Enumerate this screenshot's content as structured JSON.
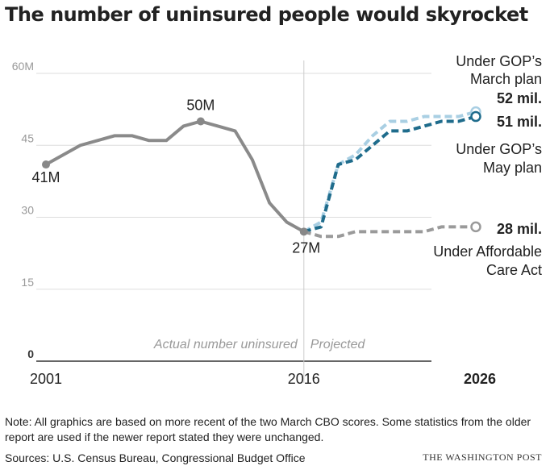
{
  "title": "The number of uninsured people would skyrocket",
  "chart_data": {
    "type": "line",
    "ylim": [
      0,
      60
    ],
    "yticks": [
      {
        "v": 0,
        "label": "0"
      },
      {
        "v": 15,
        "label": "15"
      },
      {
        "v": 30,
        "label": "30"
      },
      {
        "v": 45,
        "label": "45"
      },
      {
        "v": 60,
        "label": "60M"
      }
    ],
    "xticks": [
      {
        "v": 2001,
        "label": "2001"
      },
      {
        "v": 2016,
        "label": "2016"
      },
      {
        "v": 2026,
        "label": "2026"
      }
    ],
    "xlim": [
      2001,
      2026
    ],
    "divider": 2016,
    "region_labels": {
      "actual": "Actual number uninsured",
      "projected": "Projected"
    },
    "series": [
      {
        "key": "actual",
        "style": "solid",
        "color": "#8a8a8a",
        "x": [
          2001,
          2002,
          2003,
          2004,
          2005,
          2006,
          2007,
          2008,
          2009,
          2010,
          2011,
          2012,
          2013,
          2014,
          2015,
          2016
        ],
        "values": [
          41,
          43,
          45,
          46,
          47,
          47,
          46,
          46,
          49,
          50,
          49,
          48,
          42,
          33,
          29,
          27
        ]
      },
      {
        "key": "march",
        "style": "dashed",
        "color": "#a9cfe3",
        "x": [
          2016,
          2017,
          2018,
          2019,
          2020,
          2021,
          2022,
          2023,
          2024,
          2025,
          2026
        ],
        "values": [
          27,
          29,
          41,
          43,
          47,
          50,
          50,
          51,
          51,
          51,
          52
        ]
      },
      {
        "key": "may",
        "style": "dashed",
        "color": "#1f6c8c",
        "x": [
          2016,
          2017,
          2018,
          2019,
          2020,
          2021,
          2022,
          2023,
          2024,
          2025,
          2026
        ],
        "values": [
          27,
          28,
          41,
          42,
          45,
          48,
          48,
          49,
          50,
          50,
          51
        ]
      },
      {
        "key": "aca",
        "style": "dashed",
        "color": "#9a9a9a",
        "x": [
          2016,
          2017,
          2018,
          2019,
          2020,
          2021,
          2022,
          2023,
          2024,
          2025,
          2026
        ],
        "values": [
          27,
          26,
          26,
          27,
          27,
          27,
          27,
          27,
          28,
          28,
          28
        ]
      }
    ],
    "point_labels": [
      {
        "x": 2001,
        "y": 41,
        "label": "41M"
      },
      {
        "x": 2010,
        "y": 50,
        "label": "50M"
      },
      {
        "x": 2016,
        "y": 27,
        "label": "27M"
      }
    ],
    "end_labels": {
      "march": {
        "value": "52 mil.",
        "name": [
          "Under GOP’s",
          "March plan"
        ]
      },
      "may": {
        "value": "51 mil.",
        "name": [
          "Under GOP’s",
          "May plan"
        ]
      },
      "aca": {
        "value": "28 mil.",
        "name": [
          "Under Affordable",
          "Care Act"
        ]
      }
    }
  },
  "note": "Note: All graphics are based on more recent of the two March CBO scores. Some statistics from the older report are used if the newer report stated they were unchanged.",
  "sources": "Sources: U.S. Census Bureau, Congressional Budget Office",
  "credit": "THE WASHINGTON POST"
}
